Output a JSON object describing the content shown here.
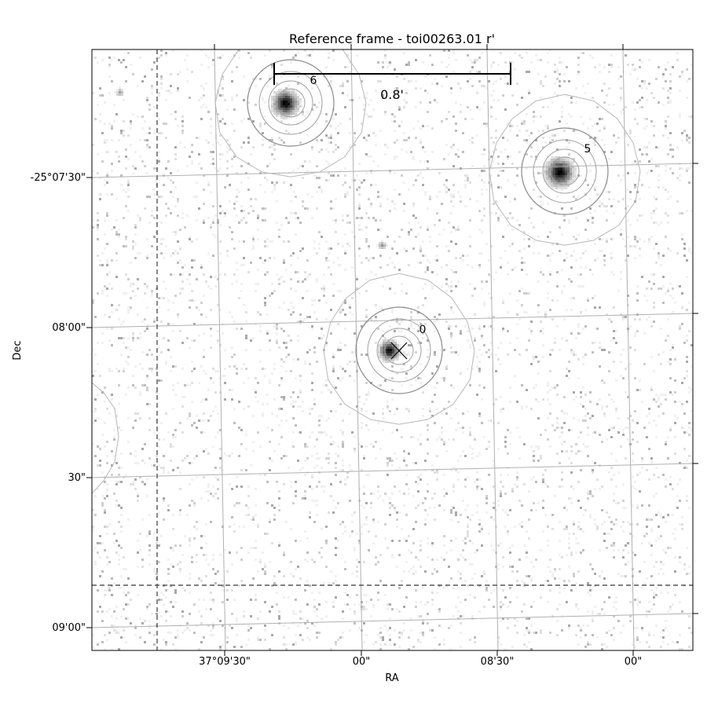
{
  "chart_data": {
    "type": "scatter",
    "title": "Reference frame - toi00263.01 r'",
    "xlabel": "RA",
    "ylabel": "Dec",
    "x_tick_labels": [
      "37°09'30\"",
      "00\"",
      "08'30\"",
      "00\""
    ],
    "y_tick_labels": [
      "-25°07'30\"",
      "08'00\"",
      "30\"",
      "09'00\""
    ],
    "grid": true,
    "scale_bar": {
      "label": "0.8'"
    },
    "target_marker": {
      "label": "0",
      "symbol": "x"
    },
    "sources": [
      {
        "label": "0"
      },
      {
        "label": "5"
      },
      {
        "label": "6"
      }
    ],
    "colormap": "gray_r"
  }
}
